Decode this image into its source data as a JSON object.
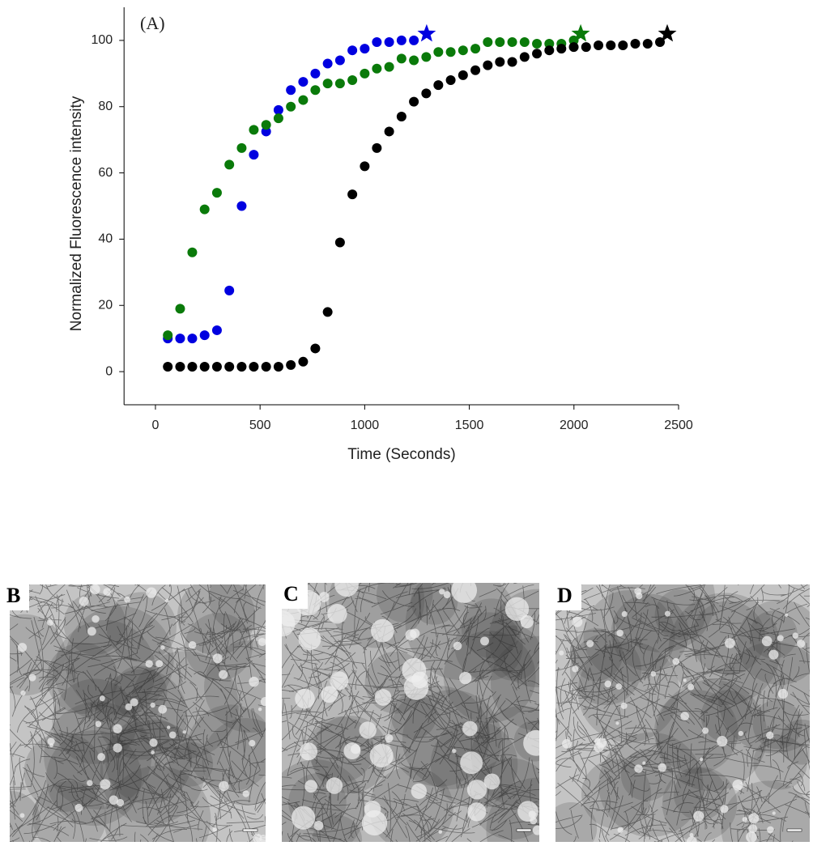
{
  "chart_data": {
    "type": "scatter",
    "annotation": "(A)",
    "x_label": "Time (Seconds)",
    "y_label": "Normalized Fluorescence intensity",
    "xlim": [
      -150,
      2500
    ],
    "xticks": [
      0,
      500,
      1000,
      1500,
      2000,
      2500
    ],
    "ylim": [
      -10,
      110
    ],
    "yticks": [
      0,
      20,
      40,
      60,
      80,
      100
    ],
    "grid": false,
    "series": [
      {
        "color": "#0000e0",
        "x": [
          59,
          118,
          176,
          235,
          294,
          353,
          412,
          470,
          529,
          588,
          647,
          706,
          764,
          823,
          882,
          941,
          1000,
          1058,
          1117,
          1176,
          1235
        ],
        "values": [
          10,
          10,
          10,
          11,
          12.5,
          24.5,
          50,
          65.5,
          72.5,
          79,
          85,
          87.5,
          90,
          93,
          94,
          97,
          97.5,
          99.5,
          99.5,
          100,
          100
        ],
        "star": {
          "x": 1296,
          "y": 102
        }
      },
      {
        "color": "#0a7a0a",
        "x": [
          59,
          118,
          176,
          235,
          294,
          353,
          412,
          470,
          529,
          588,
          647,
          706,
          764,
          823,
          882,
          941,
          1000,
          1058,
          1117,
          1176,
          1235,
          1294,
          1352,
          1411,
          1470,
          1529,
          1588,
          1646,
          1705,
          1764,
          1823,
          1882,
          1940,
          1999
        ],
        "values": [
          11,
          19,
          36,
          49,
          54,
          62.5,
          67.5,
          73,
          74.5,
          76.5,
          80,
          82,
          85,
          87,
          87,
          88,
          90,
          91.5,
          92,
          94.5,
          94,
          95,
          96.5,
          96.5,
          97,
          97.5,
          99.5,
          99.5,
          99.5,
          99.5,
          99,
          99,
          99,
          100
        ],
        "star": {
          "x": 2032,
          "y": 102
        }
      },
      {
        "color": "#000000",
        "x": [
          59,
          118,
          176,
          235,
          294,
          353,
          412,
          470,
          529,
          588,
          647,
          706,
          764,
          823,
          882,
          941,
          1000,
          1058,
          1117,
          1176,
          1235,
          1294,
          1352,
          1411,
          1470,
          1529,
          1588,
          1646,
          1705,
          1764,
          1823,
          1882,
          1940,
          1999,
          2058,
          2117,
          2176,
          2234,
          2293,
          2352,
          2411
        ],
        "values": [
          1.5,
          1.5,
          1.5,
          1.5,
          1.5,
          1.5,
          1.5,
          1.5,
          1.5,
          1.5,
          2,
          3,
          7,
          18,
          39,
          53.5,
          62,
          67.5,
          72.5,
          77,
          81.5,
          84,
          86.5,
          88,
          89.5,
          91,
          92.5,
          93.5,
          93.5,
          95,
          96,
          97,
          97.5,
          98,
          98,
          98.5,
          98.5,
          98.5,
          99,
          99,
          99.5
        ],
        "star": {
          "x": 2446,
          "y": 102
        }
      }
    ]
  },
  "panels": [
    {
      "label": "B"
    },
    {
      "label": "C"
    },
    {
      "label": "D"
    }
  ]
}
